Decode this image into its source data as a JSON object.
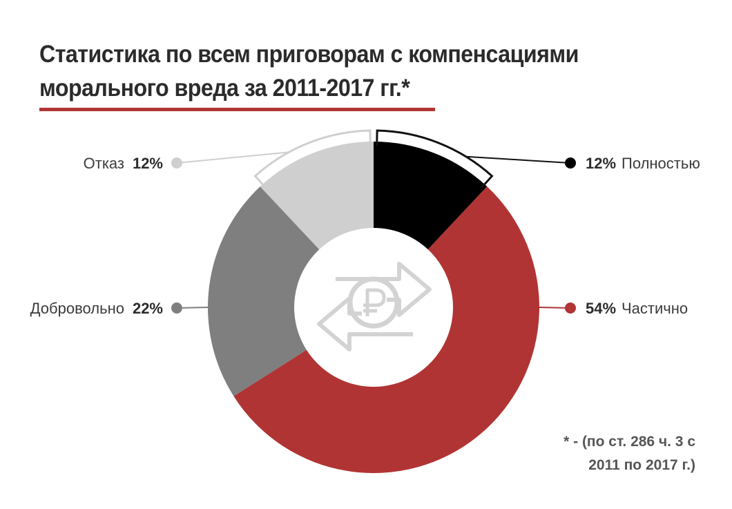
{
  "header": {
    "title_line1": "Статистика по всем приговорам с компенсациями",
    "title_line2": "морального вреда за 2011-2017 гг.*"
  },
  "footnote": {
    "line1": "* - (по ст. 286 ч. 3 с",
    "line2": "2011 по 2017 г.)"
  },
  "center_icon": "ruble-exchange-icon",
  "colors": {
    "accent": "#b13434",
    "full": "#000000",
    "partial": "#b13434",
    "voluntary": "#7f7f7f",
    "refusal": "#cfcfcf"
  },
  "chart_data": {
    "type": "pie",
    "donut": true,
    "labels": [
      "Полностью",
      "Частично",
      "Добровольно",
      "Отказ"
    ],
    "values": [
      12,
      54,
      22,
      12
    ],
    "value_labels": [
      "12%",
      "54%",
      "22%",
      "12%"
    ],
    "colors": [
      "#000000",
      "#b13434",
      "#7f7f7f",
      "#cfcfcf"
    ],
    "start": "top, clockwise",
    "title": "Статистика по всем приговорам с компенсациями морального вреда за 2011-2017 гг.*"
  }
}
